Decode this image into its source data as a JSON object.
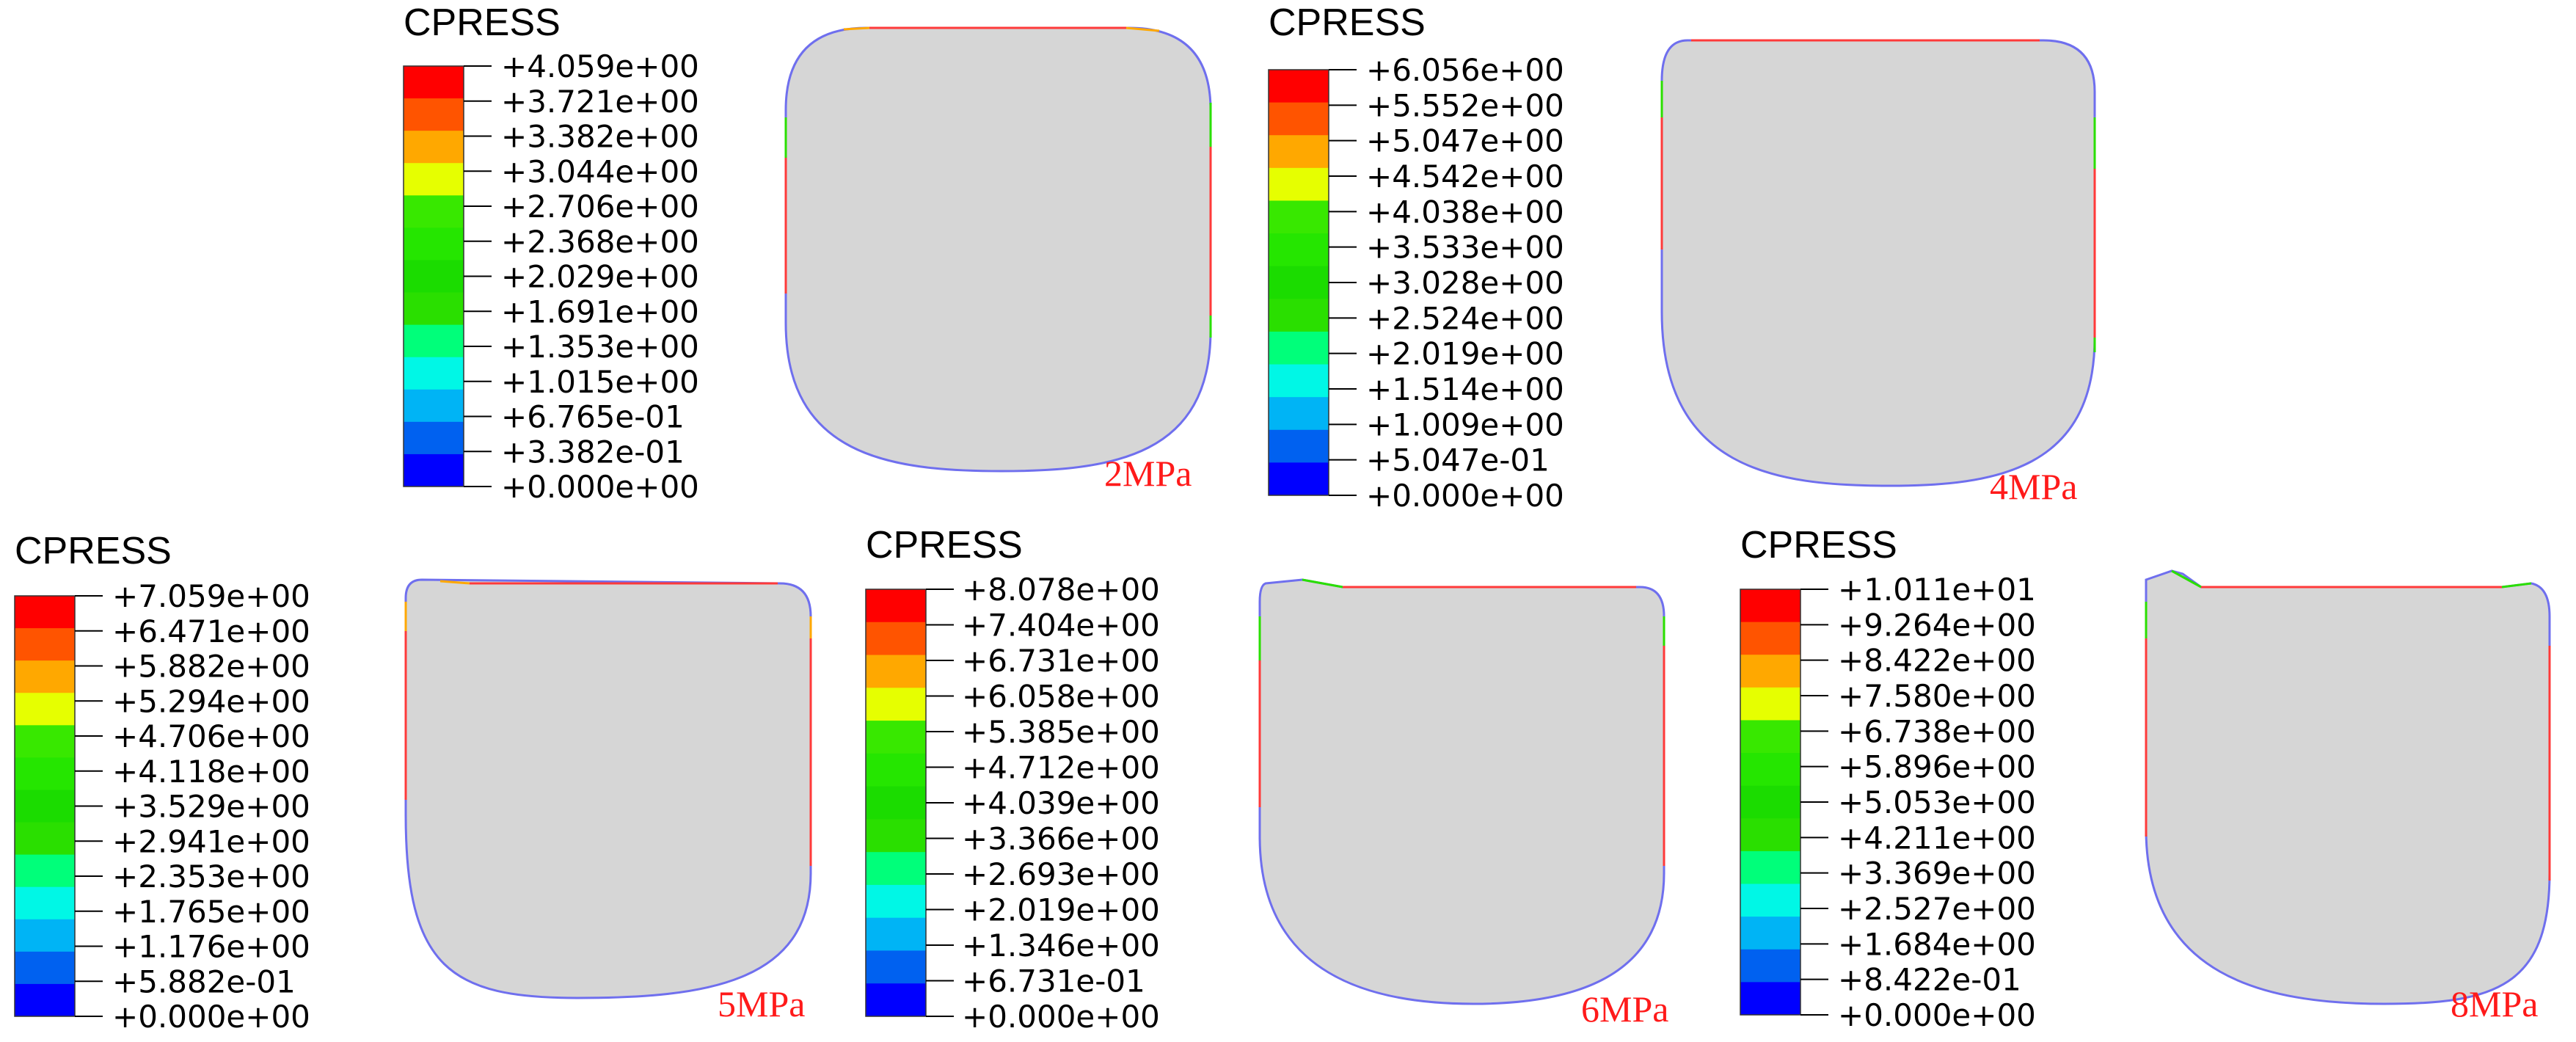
{
  "legend_colors": [
    "#ff0000",
    "#ff5400",
    "#ffa800",
    "#e6ff00",
    "#38e800",
    "#25e600",
    "#1bdc00",
    "#2adf00",
    "#00ff7a",
    "#00f7e6",
    "#00b4f5",
    "#0061f0",
    "#0000ff"
  ],
  "colors": {
    "section_fill": "#d6d6d6",
    "outline": "#6f6fee",
    "contact": "#ff3a3a",
    "label": "#ff1a1a"
  },
  "panels": [
    {
      "title": "CPRESS",
      "pressure_label": "2MPa",
      "ticks": [
        "+4.059e+00",
        "+3.721e+00",
        "+3.382e+00",
        "+3.044e+00",
        "+2.706e+00",
        "+2.368e+00",
        "+2.029e+00",
        "+1.691e+00",
        "+1.353e+00",
        "+1.015e+00",
        "+6.765e-01",
        "+3.382e-01",
        "+0.000e+00"
      ]
    },
    {
      "title": "CPRESS",
      "pressure_label": "4MPa",
      "ticks": [
        "+6.056e+00",
        "+5.552e+00",
        "+5.047e+00",
        "+4.542e+00",
        "+4.038e+00",
        "+3.533e+00",
        "+3.028e+00",
        "+2.524e+00",
        "+2.019e+00",
        "+1.514e+00",
        "+1.009e+00",
        "+5.047e-01",
        "+0.000e+00"
      ]
    },
    {
      "title": "CPRESS",
      "pressure_label": "5MPa",
      "ticks": [
        "+7.059e+00",
        "+6.471e+00",
        "+5.882e+00",
        "+5.294e+00",
        "+4.706e+00",
        "+4.118e+00",
        "+3.529e+00",
        "+2.941e+00",
        "+2.353e+00",
        "+1.765e+00",
        "+1.176e+00",
        "+5.882e-01",
        "+0.000e+00"
      ]
    },
    {
      "title": "CPRESS",
      "pressure_label": "6MPa",
      "ticks": [
        "+8.078e+00",
        "+7.404e+00",
        "+6.731e+00",
        "+6.058e+00",
        "+5.385e+00",
        "+4.712e+00",
        "+4.039e+00",
        "+3.366e+00",
        "+2.693e+00",
        "+2.019e+00",
        "+1.346e+00",
        "+6.731e-01",
        "+0.000e+00"
      ]
    },
    {
      "title": "CPRESS",
      "pressure_label": "8MPa",
      "ticks": [
        "+1.011e+01",
        "+9.264e+00",
        "+8.422e+00",
        "+7.580e+00",
        "+6.738e+00",
        "+5.896e+00",
        "+5.053e+00",
        "+4.211e+00",
        "+3.369e+00",
        "+2.527e+00",
        "+1.684e+00",
        "+8.422e-01",
        "+0.000e+00"
      ]
    }
  ]
}
